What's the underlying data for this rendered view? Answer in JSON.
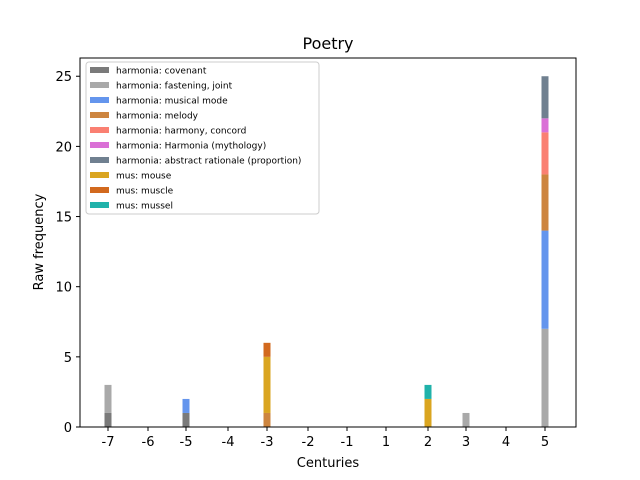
{
  "chart_data": {
    "type": "bar",
    "stacked": true,
    "title": "Poetry",
    "xlabel": "Centuries",
    "ylabel": "Raw frequency",
    "x_ticks": [
      -7,
      -6,
      -5,
      -4,
      -3,
      -2,
      -1,
      1,
      2,
      3,
      4,
      5
    ],
    "x_tick_labels": [
      "-7",
      "-6",
      "-5",
      "-4",
      "-3",
      "-2",
      "-1",
      "1",
      "2",
      "3",
      "4",
      "5"
    ],
    "y_ticks": [
      0,
      5,
      10,
      15,
      20,
      25
    ],
    "y_tick_labels": [
      "0",
      "5",
      "10",
      "15",
      "20",
      "25"
    ],
    "ylim": [
      0,
      26.3
    ],
    "legend_position": "upper-left",
    "grid": false,
    "series": [
      {
        "name": "harmonia: covenant",
        "color": "#7a7a7a",
        "points": [
          {
            "x": -7,
            "y": 1
          },
          {
            "x": -5,
            "y": 1
          }
        ]
      },
      {
        "name": "harmonia: fastening, joint",
        "color": "#a9a9a9",
        "points": [
          {
            "x": -7,
            "y": 2
          },
          {
            "x": 3,
            "y": 1
          },
          {
            "x": 5,
            "y": 7
          }
        ]
      },
      {
        "name": "harmonia: musical mode",
        "color": "#6495ed",
        "points": [
          {
            "x": -5,
            "y": 1
          },
          {
            "x": 5,
            "y": 7
          }
        ]
      },
      {
        "name": "harmonia: melody",
        "color": "#cd853f",
        "points": [
          {
            "x": -3,
            "y": 1
          },
          {
            "x": 5,
            "y": 4
          }
        ]
      },
      {
        "name": "harmonia: harmony, concord",
        "color": "#fa8072",
        "points": [
          {
            "x": 5,
            "y": 3
          }
        ]
      },
      {
        "name": "harmonia: Harmonia (mythology)",
        "color": "#da70d6",
        "points": [
          {
            "x": 5,
            "y": 1
          }
        ]
      },
      {
        "name": "harmonia: abstract rationale (proportion)",
        "color": "#708090",
        "points": [
          {
            "x": 5,
            "y": 3
          }
        ]
      },
      {
        "name": "mus: mouse",
        "color": "#daa520",
        "points": [
          {
            "x": -3,
            "y": 4
          },
          {
            "x": 2,
            "y": 2
          }
        ]
      },
      {
        "name": "mus: muscle",
        "color": "#d2691e",
        "points": [
          {
            "x": -3,
            "y": 1
          }
        ]
      },
      {
        "name": "mus: mussel",
        "color": "#20b2aa",
        "points": [
          {
            "x": 2,
            "y": 1
          }
        ]
      }
    ]
  }
}
